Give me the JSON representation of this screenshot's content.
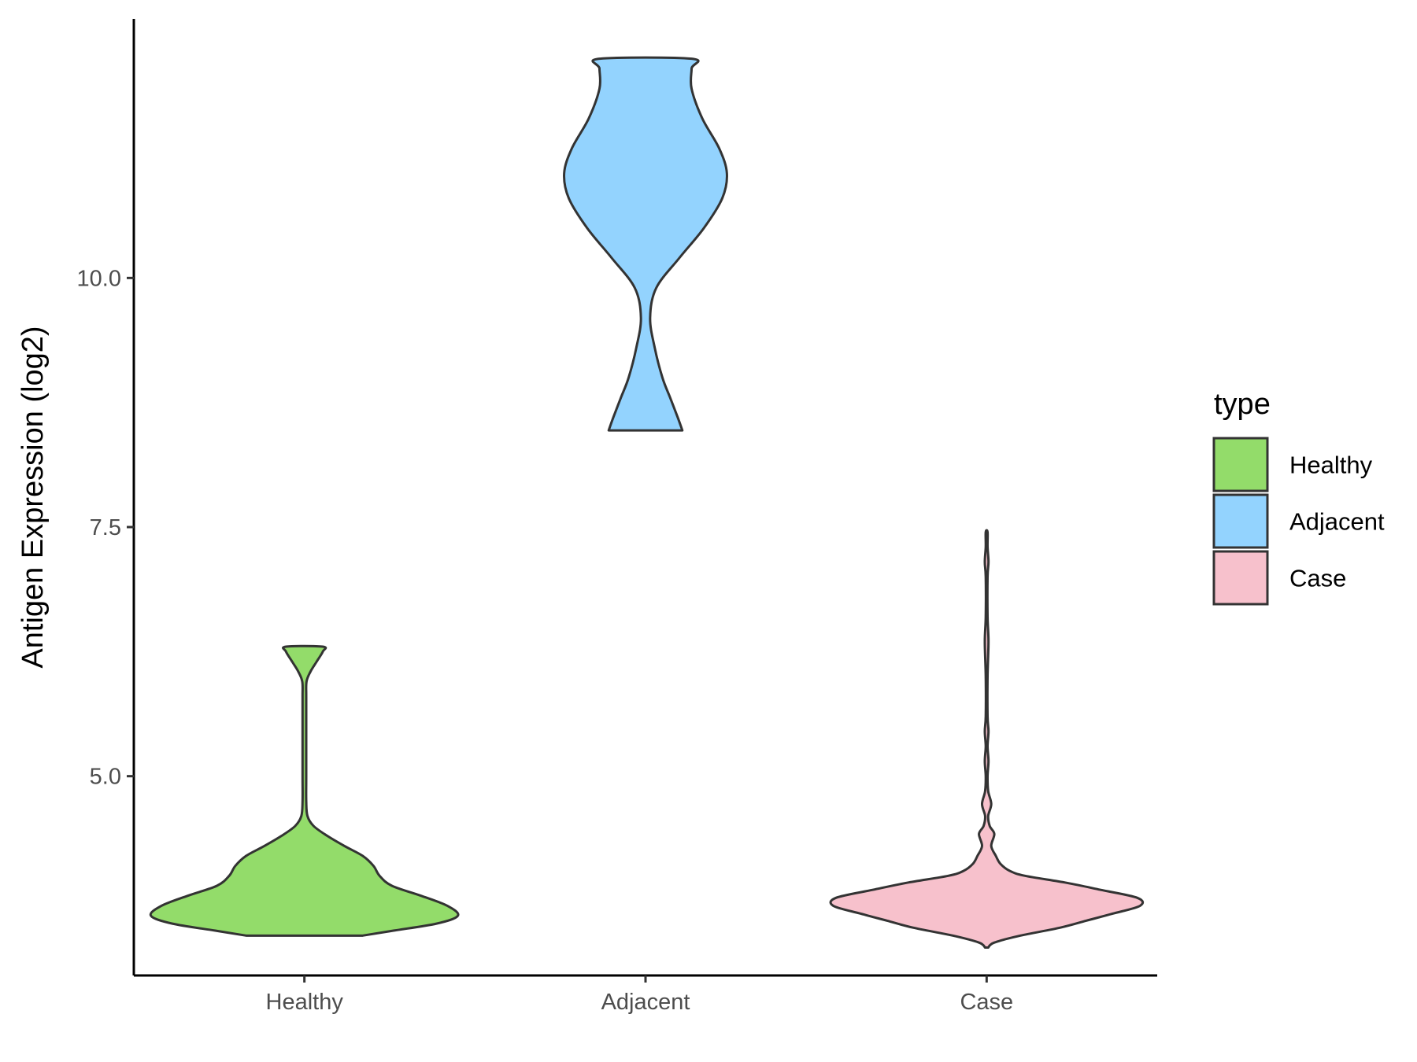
{
  "chart_data": {
    "type": "violin",
    "xlabel": "",
    "ylabel": "Antigen Expression (log2)",
    "ylim": [
      3.0,
      12.6
    ],
    "yticks": [
      5.0,
      7.5,
      10.0
    ],
    "ytick_labels": [
      "5.0",
      "7.5",
      "10.0"
    ],
    "categories": [
      "Healthy",
      "Adjacent",
      "Case"
    ],
    "legend": {
      "title": "type",
      "position": "right",
      "entries": [
        {
          "label": "Healthy",
          "color": "#93dc6a"
        },
        {
          "label": "Adjacent",
          "color": "#93d3fe"
        },
        {
          "label": "Case",
          "color": "#f7c1cc"
        }
      ]
    },
    "grid": false,
    "series": [
      {
        "category": "Healthy",
        "color": "#93dc6a",
        "min": 3.4,
        "max": 6.3,
        "density": [
          [
            3.4,
            0.38
          ],
          [
            3.45,
            0.58
          ],
          [
            3.52,
            0.86
          ],
          [
            3.6,
            1.0
          ],
          [
            3.7,
            0.93
          ],
          [
            3.8,
            0.76
          ],
          [
            3.9,
            0.57
          ],
          [
            4.0,
            0.49
          ],
          [
            4.1,
            0.45
          ],
          [
            4.2,
            0.38
          ],
          [
            4.3,
            0.26
          ],
          [
            4.4,
            0.15
          ],
          [
            4.5,
            0.06
          ],
          [
            4.6,
            0.02
          ],
          [
            4.75,
            0.012
          ],
          [
            5.0,
            0.012
          ],
          [
            5.5,
            0.012
          ],
          [
            5.8,
            0.012
          ],
          [
            5.95,
            0.014
          ],
          [
            6.05,
            0.04
          ],
          [
            6.15,
            0.08
          ],
          [
            6.25,
            0.12
          ],
          [
            6.3,
            0.12
          ]
        ]
      },
      {
        "category": "Adjacent",
        "color": "#93d3fe",
        "min": 8.47,
        "max": 12.2,
        "density": [
          [
            8.47,
            0.24
          ],
          [
            8.6,
            0.21
          ],
          [
            8.8,
            0.16
          ],
          [
            9.0,
            0.11
          ],
          [
            9.3,
            0.06
          ],
          [
            9.6,
            0.03
          ],
          [
            9.9,
            0.07
          ],
          [
            10.2,
            0.22
          ],
          [
            10.5,
            0.38
          ],
          [
            10.8,
            0.5
          ],
          [
            11.05,
            0.53
          ],
          [
            11.3,
            0.48
          ],
          [
            11.6,
            0.37
          ],
          [
            11.9,
            0.3
          ],
          [
            12.1,
            0.3
          ],
          [
            12.2,
            0.3
          ]
        ]
      },
      {
        "category": "Case",
        "color": "#f7c1cc",
        "min": 3.28,
        "max": 7.45,
        "density": [
          [
            3.28,
            0.01
          ],
          [
            3.33,
            0.05
          ],
          [
            3.4,
            0.22
          ],
          [
            3.48,
            0.48
          ],
          [
            3.55,
            0.65
          ],
          [
            3.62,
            0.82
          ],
          [
            3.7,
            1.0
          ],
          [
            3.78,
            0.98
          ],
          [
            3.86,
            0.74
          ],
          [
            3.93,
            0.52
          ],
          [
            4.0,
            0.25
          ],
          [
            4.05,
            0.15
          ],
          [
            4.12,
            0.09
          ],
          [
            4.2,
            0.06
          ],
          [
            4.3,
            0.03
          ],
          [
            4.42,
            0.05
          ],
          [
            4.5,
            0.02
          ],
          [
            4.6,
            0.01
          ],
          [
            4.72,
            0.03
          ],
          [
            4.85,
            0.01
          ],
          [
            5.0,
            0.006
          ],
          [
            5.15,
            0.012
          ],
          [
            5.3,
            0.006
          ],
          [
            5.45,
            0.012
          ],
          [
            5.6,
            0.006
          ],
          [
            6.0,
            0.006
          ],
          [
            6.35,
            0.012
          ],
          [
            6.6,
            0.006
          ],
          [
            7.0,
            0.006
          ],
          [
            7.15,
            0.012
          ],
          [
            7.3,
            0.006
          ],
          [
            7.45,
            0.006
          ]
        ]
      }
    ]
  }
}
